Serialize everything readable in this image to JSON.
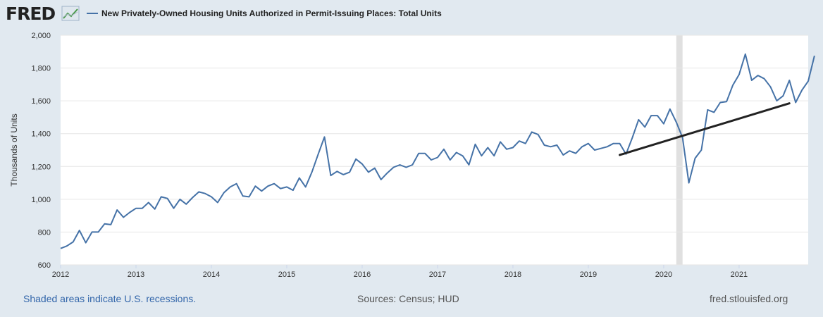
{
  "header": {
    "logo_text": "FRED",
    "legend_label": "New Privately-Owned Housing Units Authorized in Permit-Issuing Places: Total Units"
  },
  "footer": {
    "recession_note": "Shaded areas indicate U.S. recessions.",
    "sources": "Sources: Census; HUD",
    "site": "fred.stlouisfed.org"
  },
  "colors": {
    "series": "#4572a7",
    "trend": "#222222",
    "recession": "#e0e0e0",
    "page_bg": "#e1e9f0",
    "plot_bg": "#ffffff"
  },
  "chart_data": {
    "type": "line",
    "title": "",
    "xlabel": "",
    "ylabel": "Thousands of Units",
    "ylim": [
      600,
      2000
    ],
    "xlim": [
      "2012-01",
      "2021-12"
    ],
    "y_ticks": [
      "600",
      "800",
      "1,000",
      "1,200",
      "1,400",
      "1,600",
      "1,800",
      "2,000"
    ],
    "x_ticks": [
      "2012",
      "2013",
      "2014",
      "2015",
      "2016",
      "2017",
      "2018",
      "2019",
      "2020",
      "2021"
    ],
    "grid": "horizontal",
    "recessions": [
      {
        "start": "2020-03",
        "end": "2020-04"
      }
    ],
    "series": [
      {
        "name": "New Privately-Owned Housing Units Authorized in Permit-Issuing Places: Total Units",
        "start": "2012-01",
        "frequency": "monthly",
        "values": [
          700,
          715,
          740,
          810,
          735,
          800,
          800,
          850,
          845,
          935,
          890,
          920,
          945,
          945,
          980,
          940,
          1015,
          1005,
          945,
          1000,
          970,
          1010,
          1045,
          1035,
          1015,
          980,
          1040,
          1075,
          1095,
          1020,
          1015,
          1080,
          1050,
          1080,
          1095,
          1065,
          1075,
          1055,
          1130,
          1075,
          1165,
          1275,
          1380,
          1145,
          1170,
          1150,
          1165,
          1245,
          1215,
          1165,
          1190,
          1120,
          1160,
          1195,
          1210,
          1195,
          1210,
          1280,
          1280,
          1240,
          1255,
          1305,
          1240,
          1285,
          1265,
          1210,
          1335,
          1265,
          1315,
          1265,
          1350,
          1305,
          1315,
          1355,
          1340,
          1410,
          1395,
          1330,
          1320,
          1330,
          1270,
          1295,
          1280,
          1320,
          1340,
          1300,
          1310,
          1320,
          1340,
          1340,
          1275,
          1375,
          1485,
          1440,
          1510,
          1510,
          1460,
          1550,
          1470,
          1375,
          1100,
          1250,
          1300,
          1545,
          1530,
          1590,
          1595,
          1695,
          1760,
          1885,
          1725,
          1755,
          1735,
          1685,
          1600,
          1630,
          1725,
          1590,
          1665,
          1720,
          1875
        ]
      }
    ],
    "annotations": [
      {
        "type": "trend-line",
        "from": {
          "x": "2019-06",
          "y": 1270
        },
        "to": {
          "x": "2021-09",
          "y": 1585
        }
      }
    ]
  }
}
